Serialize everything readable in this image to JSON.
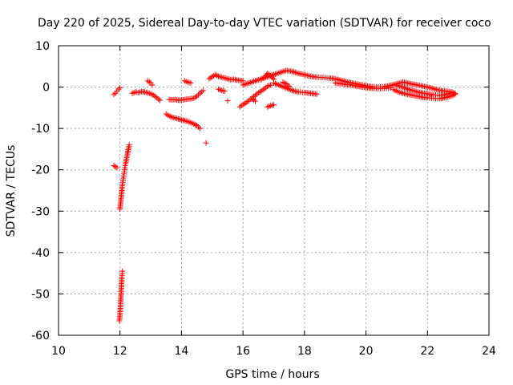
{
  "chart_data": {
    "type": "scatter",
    "title": "Day 220 of 2025, Sidereal Day-to-day VTEC variation (SDTVAR) for receiver coco",
    "xlabel": "GPS time / hours",
    "ylabel": "SDTVAR / TECUs",
    "xlim": [
      10,
      24
    ],
    "ylim": [
      -60,
      10
    ],
    "xticks": [
      10,
      12,
      14,
      16,
      18,
      20,
      22,
      24
    ],
    "yticks": [
      -60,
      -50,
      -40,
      -30,
      -20,
      -10,
      0,
      10
    ],
    "grid": true,
    "marker": "+",
    "color": "#ff0000",
    "series": [
      {
        "name": "SDTVAR",
        "segments": [
          [
            [
              11.8,
              -1.8
            ],
            [
              11.85,
              -1.5
            ],
            [
              11.9,
              -1.0
            ],
            [
              11.95,
              -0.5
            ],
            [
              12.0,
              -0.2
            ]
          ],
          [
            [
              11.8,
              -19.0
            ],
            [
              11.85,
              -19.2
            ],
            [
              11.9,
              -19.5
            ]
          ],
          [
            [
              12.0,
              -29.5
            ],
            [
              12.02,
              -28.0
            ],
            [
              12.04,
              -26.5
            ],
            [
              12.06,
              -25.0
            ],
            [
              12.08,
              -23.5
            ],
            [
              12.1,
              -22.5
            ],
            [
              12.12,
              -21.5
            ],
            [
              12.14,
              -20.5
            ],
            [
              12.16,
              -19.5
            ],
            [
              12.18,
              -18.5
            ],
            [
              12.2,
              -17.8
            ],
            [
              12.22,
              -17.0
            ],
            [
              12.24,
              -16.2
            ],
            [
              12.26,
              -15.5
            ],
            [
              12.28,
              -14.8
            ],
            [
              12.3,
              -14.0
            ]
          ],
          [
            [
              11.98,
              -56.5
            ],
            [
              12.0,
              -55.0
            ],
            [
              12.01,
              -53.5
            ],
            [
              12.02,
              -52.0
            ],
            [
              12.03,
              -50.5
            ],
            [
              12.04,
              -49.0
            ],
            [
              12.05,
              -47.5
            ],
            [
              12.06,
              -46.0
            ],
            [
              12.07,
              -45.0
            ],
            [
              12.08,
              -44.5
            ]
          ],
          [
            [
              12.4,
              -1.5
            ],
            [
              12.5,
              -1.2
            ],
            [
              12.6,
              -1.3
            ],
            [
              12.7,
              -1.1
            ],
            [
              12.8,
              -1.2
            ],
            [
              12.9,
              -1.4
            ],
            [
              13.0,
              -1.6
            ],
            [
              13.1,
              -2.0
            ],
            [
              13.2,
              -2.6
            ],
            [
              13.3,
              -3.2
            ]
          ],
          [
            [
              12.9,
              1.5
            ],
            [
              13.0,
              1.0
            ],
            [
              13.05,
              0.5
            ]
          ],
          [
            [
              13.5,
              -6.5
            ],
            [
              13.6,
              -7.0
            ],
            [
              13.7,
              -7.3
            ],
            [
              13.8,
              -7.5
            ],
            [
              13.9,
              -7.7
            ],
            [
              14.0,
              -7.9
            ],
            [
              14.1,
              -8.1
            ],
            [
              14.2,
              -8.3
            ],
            [
              14.3,
              -8.6
            ],
            [
              14.4,
              -8.9
            ],
            [
              14.5,
              -9.3
            ],
            [
              14.6,
              -10.0
            ]
          ],
          [
            [
              13.6,
              -3.0
            ],
            [
              13.7,
              -3.1
            ],
            [
              13.8,
              -3.0
            ],
            [
              13.9,
              -3.2
            ],
            [
              14.0,
              -3.1
            ],
            [
              14.1,
              -3.0
            ],
            [
              14.2,
              -2.9
            ],
            [
              14.3,
              -2.8
            ],
            [
              14.4,
              -2.7
            ],
            [
              14.5,
              -2.2
            ],
            [
              14.6,
              -1.5
            ],
            [
              14.7,
              -0.8
            ]
          ],
          [
            [
              14.1,
              1.5
            ],
            [
              14.2,
              1.2
            ],
            [
              14.3,
              1.0
            ]
          ],
          [
            [
              14.8,
              -13.5
            ]
          ],
          [
            [
              14.9,
              2.0
            ],
            [
              15.0,
              2.5
            ],
            [
              15.1,
              3.0
            ],
            [
              15.2,
              2.6
            ],
            [
              15.3,
              2.4
            ],
            [
              15.4,
              2.2
            ],
            [
              15.5,
              2.0
            ],
            [
              15.6,
              1.8
            ],
            [
              15.7,
              1.9
            ],
            [
              15.8,
              1.7
            ],
            [
              15.9,
              1.6
            ],
            [
              16.0,
              1.5
            ]
          ],
          [
            [
              15.2,
              -0.5
            ],
            [
              15.3,
              -0.8
            ],
            [
              15.4,
              -1.0
            ]
          ],
          [
            [
              15.5,
              -3.3
            ]
          ],
          [
            [
              15.9,
              -4.8
            ],
            [
              16.0,
              -4.2
            ],
            [
              16.1,
              -3.8
            ],
            [
              16.2,
              -3.2
            ],
            [
              16.3,
              -2.6
            ],
            [
              16.4,
              -2.0
            ],
            [
              16.5,
              -1.4
            ],
            [
              16.6,
              -0.9
            ],
            [
              16.7,
              -0.4
            ],
            [
              16.8,
              0.2
            ],
            [
              16.9,
              0.5
            ]
          ],
          [
            [
              16.0,
              0.5
            ],
            [
              16.2,
              1.0
            ],
            [
              16.4,
              1.5
            ],
            [
              16.6,
              2.0
            ],
            [
              16.8,
              2.5
            ],
            [
              17.0,
              3.0
            ],
            [
              17.2,
              3.5
            ],
            [
              17.4,
              4.0
            ],
            [
              17.6,
              3.8
            ],
            [
              17.8,
              3.3
            ],
            [
              18.0,
              3.0
            ],
            [
              18.2,
              2.6
            ],
            [
              18.4,
              2.4
            ],
            [
              18.6,
              2.3
            ],
            [
              18.8,
              2.2
            ],
            [
              19.0,
              2.0
            ],
            [
              19.2,
              1.6
            ],
            [
              19.4,
              1.2
            ],
            [
              19.6,
              0.9
            ],
            [
              19.8,
              0.6
            ],
            [
              20.0,
              0.3
            ],
            [
              20.2,
              0.1
            ],
            [
              20.4,
              0.0
            ],
            [
              20.6,
              0.1
            ],
            [
              20.8,
              0.4
            ],
            [
              21.0,
              0.8
            ],
            [
              21.2,
              1.2
            ],
            [
              21.4,
              0.9
            ],
            [
              21.6,
              0.6
            ],
            [
              21.8,
              0.3
            ],
            [
              22.0,
              0.0
            ],
            [
              22.2,
              -0.4
            ],
            [
              22.4,
              -0.8
            ],
            [
              22.6,
              -1.0
            ],
            [
              22.8,
              -1.2
            ],
            [
              22.9,
              -1.5
            ]
          ],
          [
            [
              17.0,
              1.0
            ],
            [
              17.2,
              0.4
            ],
            [
              17.4,
              -0.2
            ],
            [
              17.6,
              -0.8
            ],
            [
              17.8,
              -1.2
            ],
            [
              18.0,
              -1.3
            ],
            [
              18.2,
              -1.5
            ],
            [
              18.4,
              -1.7
            ]
          ],
          [
            [
              16.6,
              1.8
            ],
            [
              16.7,
              2.4
            ],
            [
              16.8,
              3.3
            ],
            [
              16.9,
              2.8
            ],
            [
              17.0,
              1.9
            ]
          ],
          [
            [
              16.3,
              -2.9
            ],
            [
              16.4,
              -3.4
            ]
          ],
          [
            [
              16.8,
              -4.8
            ],
            [
              16.9,
              -4.5
            ],
            [
              17.0,
              -4.3
            ]
          ],
          [
            [
              17.3,
              1.2
            ],
            [
              17.4,
              0.8
            ],
            [
              17.5,
              0.2
            ]
          ],
          [
            [
              20.9,
              -0.6
            ],
            [
              21.0,
              -1.0
            ],
            [
              21.2,
              -1.5
            ],
            [
              21.4,
              -1.8
            ],
            [
              21.6,
              -2.1
            ],
            [
              21.8,
              -2.4
            ],
            [
              22.0,
              -2.6
            ],
            [
              22.2,
              -2.7
            ],
            [
              22.4,
              -2.8
            ],
            [
              22.6,
              -2.5
            ],
            [
              22.8,
              -2.1
            ],
            [
              22.9,
              -1.7
            ]
          ],
          [
            [
              21.0,
              0.4
            ],
            [
              21.2,
              0.0
            ],
            [
              21.4,
              -0.6
            ],
            [
              21.6,
              -1.0
            ],
            [
              21.8,
              -1.4
            ],
            [
              22.0,
              -1.6
            ],
            [
              22.2,
              -1.9
            ],
            [
              22.4,
              -2.0
            ],
            [
              22.6,
              -1.8
            ],
            [
              22.8,
              -1.4
            ]
          ],
          [
            [
              19.0,
              1.0
            ],
            [
              19.2,
              0.8
            ],
            [
              19.4,
              0.6
            ],
            [
              19.6,
              0.4
            ],
            [
              19.8,
              0.1
            ],
            [
              20.0,
              -0.1
            ],
            [
              20.2,
              -0.3
            ],
            [
              20.4,
              -0.4
            ],
            [
              20.6,
              -0.3
            ],
            [
              20.8,
              -0.2
            ]
          ]
        ]
      }
    ]
  }
}
